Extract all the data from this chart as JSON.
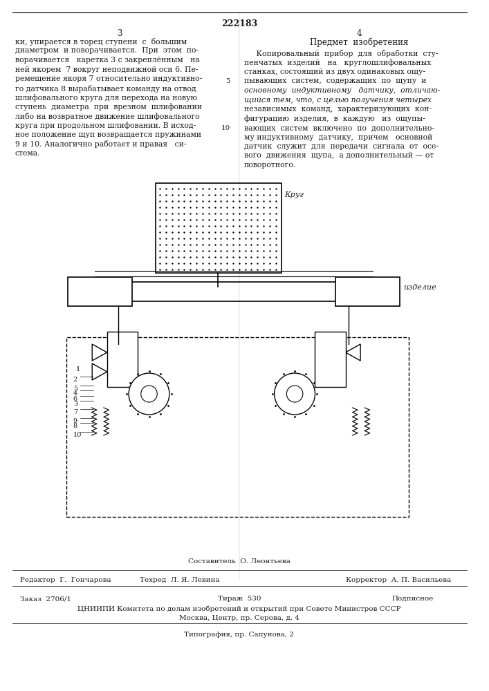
{
  "patent_number": "222183",
  "page_left": "3",
  "page_right": "4",
  "top_line": true,
  "left_text": [
    "ки, упирается в торец ступени  с  большим",
    "диаметром  и поворачивается.  При  этом  по-",
    "ворачивается   каретка 3 с закреплённым   на",
    "ней якорем  7 вокруг неподвижной оси 6. Пе-",
    "ремещение якоря 7 относительно индуктивно-",
    "го датчика 8 вырабатывает команду на отвод",
    "шлифовального круга для перехода на новую",
    "ступень  диаметра  при  врезном  шлифовании",
    "либо на возвратное движение шлифовального",
    "круга при продольном шлифовании. В исход-",
    "ное положение щуп возвращается пружинами",
    "9 и 10. Аналогично работает и правая   си-",
    "стема."
  ],
  "right_title": "Предмет  изобретения",
  "right_text": [
    "     Копировальный  прибор  для  обработки  сту-",
    "пенчатых  изделий   на   круглошлифовальных",
    "станках, состоящий из двух одинаковых ощу-",
    "пывающих  систем,  содержащих  по  щупу  и",
    "основному  индуктивному   датчику,  отличаю-",
    "щийся тем, что, с целью получения четырех",
    "независимых  команд,  характеризующих  кон-",
    "фигурацию  изделия,  в  каждую   из  ощупы-",
    "вающих  систем  включено  по  дополнительно-",
    "му индуктивному  датчику,  причем   основной",
    "датчик  служит  для  передачи  сигнала  от  осе-",
    "вого  движения  щупа,  а дополнительный — от",
    "поворотного."
  ],
  "bottom_composer": "Составитель  О. Леонтьева",
  "bottom_editor": "Редактор  Г.  Гончарова",
  "bottom_tech": "Техред  Л. Я. Левина",
  "bottom_corrector": "Корректор  А. П. Васильева",
  "bottom_order": "Заказ  2706/1",
  "bottom_print": "Тираж  530",
  "bottom_signed": "Подписное",
  "bottom_org1": "ЦНИИПИ Комитета по делам изобретений и открытий при Совете Министров СССР",
  "bottom_org2": "Москва, Центр, пр. Серова, д. 4",
  "bottom_typography": "Типография, пр. Сапунова, 2",
  "bg_color": "#ffffff",
  "text_color": "#1a1a1a",
  "line_numbers_left": [
    "5",
    "10"
  ],
  "line_numbers_right": [
    "5",
    "10"
  ]
}
